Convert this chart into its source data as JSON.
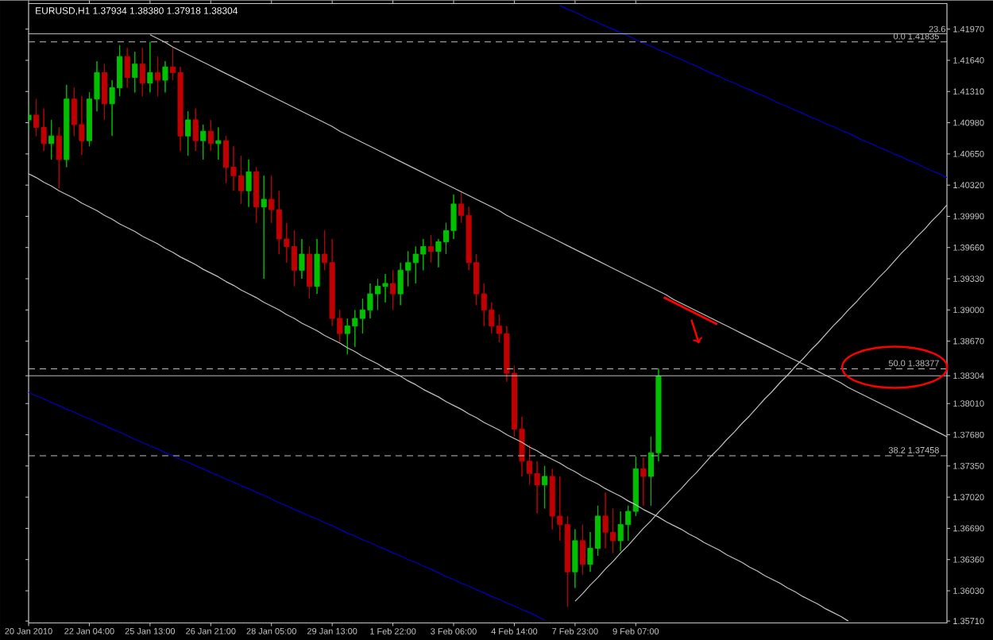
{
  "chart_data": {
    "type": "candlestick",
    "title": "EURUSD,H1 1.37934 1.38380 1.37918 1.38304",
    "categories": [
      "20 Jan 2010",
      null,
      null,
      null,
      null,
      null,
      null,
      null,
      "22 Jan 04:00",
      null,
      null,
      null,
      null,
      null,
      null,
      null,
      "25 Jan 13:00",
      null,
      null,
      null,
      null,
      null,
      null,
      null,
      "26 Jan 21:00",
      null,
      null,
      null,
      null,
      null,
      null,
      null,
      "28 Jan 05:00",
      null,
      null,
      null,
      null,
      null,
      null,
      null,
      "29 Jan 13:00",
      null,
      null,
      null,
      null,
      null,
      null,
      null,
      "1 Feb 22:00",
      null,
      null,
      null,
      null,
      null,
      null,
      null,
      "3 Feb 06:00",
      null,
      null,
      null,
      null,
      null,
      null,
      null,
      "4 Feb 14:00",
      null,
      null,
      null,
      null,
      null,
      null,
      null,
      "7 Feb 23:00",
      null,
      null,
      null,
      null,
      null,
      null,
      null,
      "9 Feb 07:00",
      null,
      null,
      null,
      null,
      null,
      null,
      null,
      null,
      null,
      null,
      null,
      null,
      null,
      null,
      null,
      null,
      null,
      null,
      null,
      null,
      null,
      null,
      null,
      null,
      null,
      null,
      null,
      null,
      null,
      null,
      null,
      null,
      null,
      null,
      null,
      null,
      null,
      null,
      null,
      null,
      null
    ],
    "ohlc": [
      [
        1.4101,
        1.4118,
        1.4089,
        1.4106
      ],
      [
        1.4106,
        1.4123,
        1.4084,
        1.4093
      ],
      [
        1.4093,
        1.4113,
        1.4068,
        1.4076
      ],
      [
        1.4076,
        1.4101,
        1.4059,
        1.4084
      ],
      [
        1.4084,
        1.4093,
        1.4029,
        1.4059
      ],
      [
        1.4059,
        1.4138,
        1.4051,
        1.4123
      ],
      [
        1.4123,
        1.4135,
        1.4084,
        1.4096
      ],
      [
        1.4096,
        1.4126,
        1.4064,
        1.4079
      ],
      [
        1.4079,
        1.413,
        1.4073,
        1.4123
      ],
      [
        1.4123,
        1.4163,
        1.411,
        1.4151
      ],
      [
        1.4151,
        1.416,
        1.4101,
        1.4118
      ],
      [
        1.4118,
        1.4143,
        1.4084,
        1.4135
      ],
      [
        1.4135,
        1.418,
        1.4126,
        1.4168
      ],
      [
        1.4168,
        1.4177,
        1.4135,
        1.4146
      ],
      [
        1.4146,
        1.4173,
        1.413,
        1.416
      ],
      [
        1.416,
        1.4177,
        1.4126,
        1.414
      ],
      [
        1.414,
        1.41835,
        1.413,
        1.4151
      ],
      [
        1.4151,
        1.4168,
        1.4126,
        1.4143
      ],
      [
        1.4143,
        1.4163,
        1.413,
        1.4157
      ],
      [
        1.4157,
        1.4177,
        1.4143,
        1.4151
      ],
      [
        1.4151,
        1.4157,
        1.4068,
        1.4084
      ],
      [
        1.4084,
        1.411,
        1.4063,
        1.4101
      ],
      [
        1.4101,
        1.4113,
        1.4068,
        1.4079
      ],
      [
        1.4079,
        1.4096,
        1.4059,
        1.4089
      ],
      [
        1.4089,
        1.4101,
        1.4068,
        1.4076
      ],
      [
        1.4076,
        1.4093,
        1.4059,
        1.4079
      ],
      [
        1.4079,
        1.4084,
        1.4034,
        1.4051
      ],
      [
        1.4051,
        1.4073,
        1.4026,
        1.4042
      ],
      [
        1.4042,
        1.4063,
        1.4012,
        1.4026
      ],
      [
        1.4026,
        1.4059,
        1.4009,
        1.4046
      ],
      [
        1.4046,
        1.4051,
        1.3992,
        1.4009
      ],
      [
        1.4009,
        1.4042,
        1.3933,
        1.4017
      ],
      [
        1.4017,
        1.4042,
        1.3992,
        1.4006
      ],
      [
        1.4006,
        1.4026,
        1.3959,
        1.3975
      ],
      [
        1.3975,
        1.3992,
        1.395,
        1.3967
      ],
      [
        1.3967,
        1.3984,
        1.3925,
        1.3942
      ],
      [
        1.3942,
        1.3975,
        1.3933,
        1.3959
      ],
      [
        1.3959,
        1.3967,
        1.3912,
        1.3925
      ],
      [
        1.3925,
        1.3975,
        1.3917,
        1.3959
      ],
      [
        1.3959,
        1.3984,
        1.3942,
        1.395
      ],
      [
        1.395,
        1.3975,
        1.3883,
        1.3891
      ],
      [
        1.3891,
        1.39,
        1.3866,
        1.3875
      ],
      [
        1.3875,
        1.3891,
        1.3853,
        1.3883
      ],
      [
        1.3883,
        1.39,
        1.3861,
        1.3891
      ],
      [
        1.3891,
        1.3912,
        1.3875,
        1.39
      ],
      [
        1.39,
        1.3928,
        1.3891,
        1.3917
      ],
      [
        1.3917,
        1.3933,
        1.39,
        1.3925
      ],
      [
        1.3925,
        1.3938,
        1.3908,
        1.3928
      ],
      [
        1.3928,
        1.3942,
        1.39,
        1.3917
      ],
      [
        1.3917,
        1.395,
        1.3905,
        1.3942
      ],
      [
        1.3942,
        1.3962,
        1.3925,
        1.395
      ],
      [
        1.395,
        1.3967,
        1.3928,
        1.3959
      ],
      [
        1.3959,
        1.3975,
        1.3942,
        1.3967
      ],
      [
        1.3967,
        1.3979,
        1.395,
        1.3962
      ],
      [
        1.3962,
        1.3975,
        1.3945,
        1.3972
      ],
      [
        1.3972,
        1.3992,
        1.3959,
        1.3984
      ],
      [
        1.3984,
        1.4022,
        1.3975,
        1.4012
      ],
      [
        1.4012,
        1.4024,
        1.3992,
        1.4
      ],
      [
        1.4,
        1.4009,
        1.3942,
        1.395
      ],
      [
        1.395,
        1.3959,
        1.3905,
        1.3917
      ],
      [
        1.3917,
        1.3928,
        1.3883,
        1.39
      ],
      [
        1.39,
        1.3908,
        1.3875,
        1.3883
      ],
      [
        1.3883,
        1.3895,
        1.3866,
        1.3875
      ],
      [
        1.3875,
        1.3883,
        1.3824,
        1.3833
      ],
      [
        1.3833,
        1.3841,
        1.3766,
        1.3774
      ],
      [
        1.3774,
        1.3787,
        1.3724,
        1.374
      ],
      [
        1.374,
        1.3757,
        1.3715,
        1.3727
      ],
      [
        1.3727,
        1.374,
        1.3685,
        1.3715
      ],
      [
        1.3715,
        1.3735,
        1.369,
        1.3724
      ],
      [
        1.3724,
        1.3732,
        1.3668,
        1.3682
      ],
      [
        1.3682,
        1.3724,
        1.3656,
        1.3673
      ],
      [
        1.3673,
        1.3682,
        1.3586,
        1.3623
      ],
      [
        1.3623,
        1.3668,
        1.3606,
        1.3656
      ],
      [
        1.3656,
        1.3673,
        1.362,
        1.3631
      ],
      [
        1.3631,
        1.3665,
        1.3623,
        1.3648
      ],
      [
        1.3648,
        1.3693,
        1.364,
        1.3682
      ],
      [
        1.3682,
        1.3707,
        1.3648,
        1.3665
      ],
      [
        1.3665,
        1.369,
        1.3643,
        1.3656
      ],
      [
        1.3656,
        1.3687,
        1.3645,
        1.3673
      ],
      [
        1.3673,
        1.3693,
        1.3656,
        1.3687
      ],
      [
        1.3687,
        1.3745,
        1.3682,
        1.3732
      ],
      [
        1.3732,
        1.3744,
        1.3693,
        1.3724
      ],
      [
        1.3724,
        1.3766,
        1.3693,
        1.3749
      ],
      [
        1.3749,
        1.3838,
        1.374,
        1.383
      ],
      null,
      null,
      null,
      null,
      null,
      null,
      null,
      null,
      null,
      null,
      null,
      null,
      null,
      null,
      null,
      null,
      null,
      null,
      null,
      null,
      null,
      null,
      null,
      null,
      null,
      null,
      null,
      null,
      null,
      null,
      null,
      null,
      null,
      null,
      null,
      null,
      null,
      null
    ],
    "series": [
      {
        "type": "line",
        "color": "#c0c0c0",
        "values": [
          null,
          null,
          null,
          null,
          null,
          null,
          null,
          null,
          null,
          null,
          null,
          null,
          null,
          null,
          null,
          null,
          1.4191,
          1.4187,
          1.4183,
          1.4178,
          1.4174,
          1.417,
          1.4166,
          1.4162,
          1.4158,
          1.4154,
          1.415,
          1.4146,
          1.4142,
          1.4138,
          1.4134,
          1.413,
          1.4126,
          1.4122,
          1.4118,
          1.4114,
          1.411,
          1.4106,
          1.4102,
          1.4098,
          1.4094,
          1.4089,
          1.4085,
          1.4081,
          1.4077,
          1.4073,
          1.4069,
          1.4065,
          1.4061,
          1.4057,
          1.4053,
          1.4049,
          1.4045,
          1.4041,
          1.4037,
          1.4033,
          1.4029,
          1.4025,
          1.4021,
          1.4017,
          1.4013,
          1.4009,
          1.4005,
          1.4,
          1.3996,
          1.3992,
          1.3988,
          1.3984,
          1.398,
          1.3976,
          1.3972,
          1.3968,
          1.3964,
          1.396,
          1.3956,
          1.3952,
          1.3948,
          1.3944,
          1.394,
          1.3936,
          1.3932,
          1.3928,
          1.3924,
          1.392,
          1.3916,
          1.3911,
          1.3907,
          1.3903,
          1.3899,
          1.3895,
          1.3891,
          1.3887,
          1.3883,
          1.3879,
          1.3875,
          1.3871,
          1.3867,
          1.3863,
          1.3859,
          1.3855,
          1.3851,
          1.3847,
          1.3843,
          1.3839,
          1.3835,
          1.3831,
          1.3827,
          1.3823,
          1.3818,
          1.3814,
          1.381,
          1.3806,
          1.3802,
          1.3798,
          1.3794,
          1.379,
          1.3786,
          1.3782,
          1.3778,
          1.3774,
          1.377,
          1.3766
        ]
      },
      {
        "type": "line",
        "color": "#c0c0c0",
        "values": [
          1.4044,
          1.404,
          1.4035,
          1.4031,
          1.4026,
          1.4022,
          1.4018,
          1.4013,
          1.4009,
          1.4005,
          1.4,
          1.3996,
          1.3991,
          1.3987,
          1.3983,
          1.3978,
          1.3974,
          1.397,
          1.3965,
          1.3961,
          1.3956,
          1.3952,
          1.3948,
          1.3943,
          1.3939,
          1.3935,
          1.393,
          1.3926,
          1.3921,
          1.3917,
          1.3913,
          1.3908,
          1.3904,
          1.39,
          1.3895,
          1.3891,
          1.3886,
          1.3882,
          1.3878,
          1.3873,
          1.3869,
          1.3865,
          1.386,
          1.3856,
          1.3851,
          1.3847,
          1.3843,
          1.3838,
          1.3834,
          1.383,
          1.3825,
          1.3821,
          1.3816,
          1.3812,
          1.3808,
          1.3803,
          1.3799,
          1.3795,
          1.379,
          1.3786,
          1.3781,
          1.3777,
          1.3773,
          1.3768,
          1.3764,
          1.376,
          1.3755,
          1.3751,
          1.3746,
          1.3742,
          1.3738,
          1.3733,
          1.3729,
          1.3724,
          1.372,
          1.3716,
          1.3711,
          1.3707,
          1.3703,
          1.3698,
          1.3694,
          1.3689,
          1.3685,
          1.3681,
          1.3676,
          1.3672,
          1.3668,
          1.3663,
          1.3659,
          1.3654,
          1.365,
          1.3646,
          1.3641,
          1.3637,
          1.3633,
          1.3628,
          1.3624,
          1.3619,
          1.3615,
          1.3611,
          1.3606,
          1.3602,
          1.3597,
          1.3593,
          1.3589,
          1.3584,
          1.358,
          1.3576,
          1.3571,
          null,
          null,
          null,
          null,
          null,
          null,
          null,
          null,
          null,
          null,
          null,
          null,
          null
        ]
      },
      {
        "type": "line",
        "color": "#c0c0c0",
        "values": [
          null,
          null,
          null,
          null,
          null,
          null,
          null,
          null,
          null,
          null,
          null,
          null,
          null,
          null,
          null,
          null,
          null,
          null,
          null,
          null,
          null,
          null,
          null,
          null,
          null,
          null,
          null,
          null,
          null,
          null,
          null,
          null,
          null,
          null,
          null,
          null,
          null,
          null,
          null,
          null,
          null,
          null,
          null,
          null,
          null,
          null,
          null,
          null,
          null,
          null,
          null,
          null,
          null,
          null,
          null,
          null,
          null,
          null,
          null,
          null,
          null,
          null,
          null,
          null,
          null,
          null,
          null,
          null,
          null,
          null,
          null,
          null,
          1.3592,
          1.36,
          1.3609,
          1.3617,
          1.3626,
          1.3634,
          1.3643,
          1.3651,
          1.366,
          1.3669,
          1.3677,
          1.3686,
          1.3694,
          1.3703,
          1.3711,
          1.372,
          1.3728,
          1.3737,
          1.3746,
          1.3754,
          1.3763,
          1.3771,
          1.378,
          1.3788,
          1.3797,
          1.3806,
          1.3814,
          1.3823,
          1.3831,
          1.384,
          1.3848,
          1.3857,
          1.3865,
          1.3874,
          1.3883,
          1.3891,
          1.39,
          1.3908,
          1.3917,
          1.3925,
          1.3934,
          1.3942,
          1.3951,
          1.396,
          1.3968,
          1.3977,
          1.3985,
          1.3994,
          1.4002,
          1.4011
        ]
      },
      {
        "type": "line",
        "color": "#0000c8",
        "values": [
          null,
          null,
          null,
          null,
          null,
          null,
          null,
          null,
          null,
          null,
          null,
          null,
          null,
          null,
          null,
          null,
          null,
          null,
          null,
          null,
          null,
          null,
          null,
          null,
          null,
          null,
          null,
          null,
          null,
          null,
          null,
          null,
          null,
          null,
          null,
          null,
          null,
          null,
          null,
          null,
          null,
          null,
          null,
          null,
          null,
          null,
          null,
          null,
          null,
          null,
          null,
          null,
          null,
          null,
          null,
          null,
          null,
          null,
          null,
          null,
          null,
          null,
          null,
          null,
          null,
          null,
          null,
          null,
          null,
          null,
          1.4222,
          1.4218,
          1.4215,
          1.4211,
          1.4207,
          1.4204,
          1.42,
          1.4197,
          1.4193,
          1.419,
          1.4186,
          1.4182,
          1.4179,
          1.4175,
          1.4172,
          1.4168,
          1.4165,
          1.4161,
          1.4158,
          1.4154,
          1.415,
          1.4147,
          1.4143,
          1.414,
          1.4136,
          1.4133,
          1.4129,
          1.4126,
          1.4122,
          1.4118,
          1.4115,
          1.4111,
          1.4108,
          1.4104,
          1.4101,
          1.4097,
          1.4094,
          1.409,
          1.4087,
          1.4083,
          1.4079,
          1.4076,
          1.4072,
          1.4069,
          1.4065,
          1.4062,
          1.4058,
          1.4055,
          1.4051,
          1.4047,
          1.4044,
          1.404
        ]
      },
      {
        "type": "line",
        "color": "#0000c8",
        "values": [
          1.3813,
          1.3809,
          1.3806,
          1.3802,
          1.3799,
          1.3795,
          1.3792,
          1.3788,
          1.3785,
          1.3781,
          1.3778,
          1.3774,
          1.3771,
          1.3767,
          1.3763,
          1.376,
          1.3756,
          1.3753,
          1.3749,
          1.3746,
          1.3742,
          1.3739,
          1.3735,
          1.3732,
          1.3728,
          1.3725,
          1.3721,
          1.3718,
          1.3714,
          1.3711,
          1.3707,
          1.3704,
          1.37,
          1.3696,
          1.3693,
          1.3689,
          1.3686,
          1.3682,
          1.3679,
          1.3675,
          1.3672,
          1.3668,
          1.3664,
          1.3661,
          1.3657,
          1.3654,
          1.365,
          1.3647,
          1.3643,
          1.364,
          1.3636,
          1.3633,
          1.3629,
          1.3626,
          1.3622,
          1.3618,
          1.3615,
          1.3611,
          1.3608,
          1.3604,
          1.3601,
          1.3597,
          1.3594,
          1.359,
          1.3587,
          1.3583,
          1.358,
          1.3576,
          1.3572,
          null,
          null,
          null,
          null,
          null,
          null,
          null,
          null,
          null,
          null,
          null,
          null,
          null,
          null,
          null,
          null,
          null,
          null,
          null,
          null,
          null,
          null,
          null,
          null,
          null,
          null,
          null,
          null,
          null,
          null,
          null,
          null,
          null,
          null,
          null,
          null,
          null,
          null,
          null,
          null,
          null,
          null,
          null,
          null,
          null,
          null,
          null,
          null,
          null,
          null,
          null,
          null,
          null
        ]
      }
    ],
    "ylim": [
      1.3569,
      1.4224
    ],
    "yticks": [
      {
        "value": 1.4197,
        "label": "1.41970"
      },
      {
        "value": 1.4164,
        "label": "1.41640"
      },
      {
        "value": 1.4131,
        "label": "1.41310"
      },
      {
        "value": 1.4098,
        "label": "1.40980"
      },
      {
        "value": 1.4065,
        "label": "1.40650"
      },
      {
        "value": 1.4032,
        "label": "1.40320"
      },
      {
        "value": 1.3999,
        "label": "1.39990"
      },
      {
        "value": 1.3966,
        "label": "1.39660"
      },
      {
        "value": 1.3933,
        "label": "1.39330"
      },
      {
        "value": 1.39,
        "label": "1.39000"
      },
      {
        "value": 1.3867,
        "label": "1.38670"
      },
      {
        "value": 1.38304,
        "label": "1.38304"
      },
      {
        "value": 1.3801,
        "label": "1.38010"
      },
      {
        "value": 1.3768,
        "label": "1.37680"
      },
      {
        "value": 1.3735,
        "label": "1.37350"
      },
      {
        "value": 1.3702,
        "label": "1.37020"
      },
      {
        "value": 1.3669,
        "label": "1.36690"
      },
      {
        "value": 1.3636,
        "label": "1.36360"
      },
      {
        "value": 1.3603,
        "label": "1.36030"
      },
      {
        "value": 1.3571,
        "label": "1.35710"
      }
    ],
    "annotations": [
      "23.6"
    ],
    "ref_lines": [
      {
        "axis": "y",
        "value": 1.4192,
        "color": "#c0c0c0",
        "line_style": "solid"
      },
      {
        "axis": "y",
        "value": 1.41835,
        "label": "0.0 1.41835",
        "color": "#c0c0c0",
        "line_style": "dashed"
      },
      {
        "axis": "y",
        "value": 1.38377,
        "label": "50.0 1.38377",
        "color": "#c0c0c0",
        "line_style": "dashed"
      },
      {
        "axis": "y",
        "value": 1.37458,
        "label": "38.2 1.37458",
        "color": "#c0c0c0",
        "line_style": "dashed"
      },
      {
        "axis": "y",
        "value": 1.38304,
        "color": "#c0c0c0",
        "line_style": "solid"
      }
    ]
  }
}
